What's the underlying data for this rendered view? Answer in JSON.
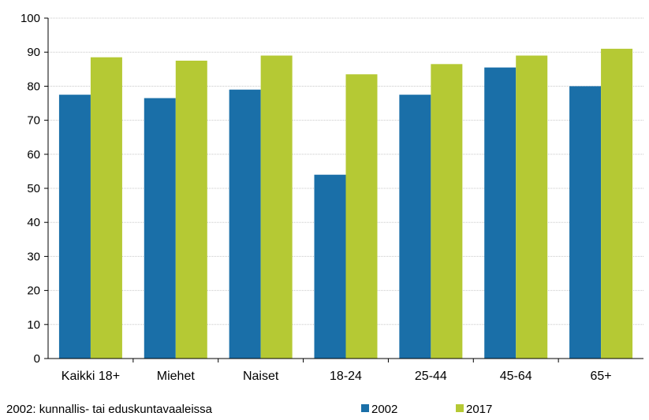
{
  "chart_data": {
    "type": "bar",
    "categories": [
      "Kaikki 18+",
      "Miehet",
      "Naiset",
      "18-24",
      "25-44",
      "45-64",
      "65+"
    ],
    "series": [
      {
        "name": "2002",
        "values": [
          77.5,
          76.5,
          79,
          54,
          77.5,
          85.5,
          80
        ],
        "color": "#1a6fa8"
      },
      {
        "name": "2017",
        "values": [
          88.5,
          87.5,
          89,
          83.5,
          86.5,
          89,
          91
        ],
        "color": "#b5c934"
      }
    ],
    "title": "",
    "xlabel": "",
    "ylabel": "",
    "ylim": [
      0,
      100
    ],
    "yticks": [
      0,
      10,
      20,
      30,
      40,
      50,
      60,
      70,
      80,
      90,
      100
    ],
    "grid": true,
    "legend_position": "bottom-right"
  },
  "footnote": "2002: kunnallis- tai eduskuntavaaleissa"
}
